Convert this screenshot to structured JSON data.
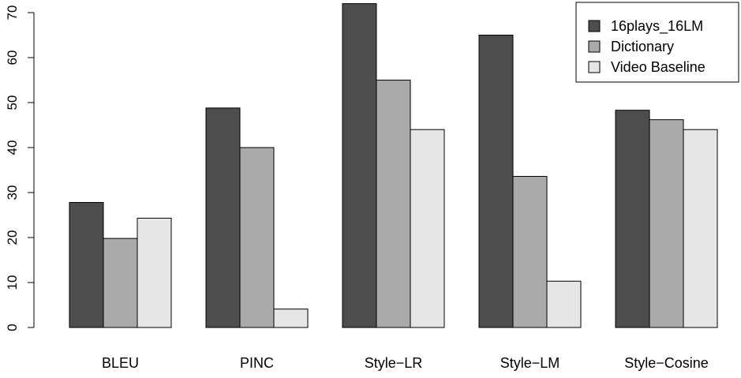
{
  "chart_data": {
    "type": "bar",
    "categories": [
      "BLEU",
      "PINC",
      "Style−LR",
      "Style−LM",
      "Style−Cosine"
    ],
    "series": [
      {
        "name": "16plays_16LM",
        "values": [
          27.8,
          48.8,
          72.0,
          65.0,
          48.3
        ],
        "color": "#4d4d4d"
      },
      {
        "name": "Dictionary",
        "values": [
          19.8,
          40.0,
          55.0,
          33.6,
          46.2
        ],
        "color": "#aaaaaa"
      },
      {
        "name": "Video Baseline",
        "values": [
          24.3,
          4.1,
          44.0,
          10.3,
          44.0
        ],
        "color": "#e6e6e6"
      }
    ],
    "y_ticks": [
      "0",
      "10",
      "20",
      "30",
      "40",
      "50",
      "60",
      "70"
    ],
    "ylim": [
      0,
      72
    ],
    "legend_position": "top-right",
    "grid": false
  }
}
